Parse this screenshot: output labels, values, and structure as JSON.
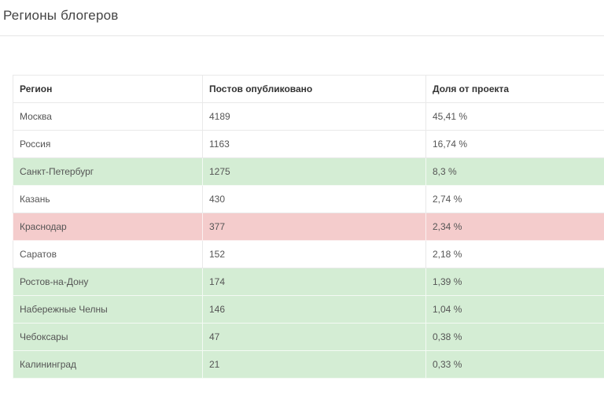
{
  "page": {
    "title": "Регионы блогеров"
  },
  "table": {
    "columns": [
      "Регион",
      "Постов опубликовано",
      "Доля от проекта"
    ],
    "rows": [
      {
        "region": "Москва",
        "posts": "4189",
        "share": "45,41 %",
        "highlight": "none"
      },
      {
        "region": "Россия",
        "posts": "1163",
        "share": "16,74 %",
        "highlight": "none"
      },
      {
        "region": "Санкт-Петербург",
        "posts": "1275",
        "share": "8,3 %",
        "highlight": "green"
      },
      {
        "region": "Казань",
        "posts": "430",
        "share": "2,74 %",
        "highlight": "none"
      },
      {
        "region": "Краснодар",
        "posts": "377",
        "share": "2,34 %",
        "highlight": "red"
      },
      {
        "region": "Саратов",
        "posts": "152",
        "share": "2,18 %",
        "highlight": "none"
      },
      {
        "region": "Ростов-на-Дону",
        "posts": "174",
        "share": "1,39 %",
        "highlight": "green"
      },
      {
        "region": "Набережные Челны",
        "posts": "146",
        "share": "1,04 %",
        "highlight": "green"
      },
      {
        "region": "Чебоксары",
        "posts": "47",
        "share": "0,38 %",
        "highlight": "green"
      },
      {
        "region": "Калининград",
        "posts": "21",
        "share": "0,33 %",
        "highlight": "green"
      }
    ]
  },
  "colors": {
    "green_row": "#d4edd4",
    "red_row": "#f4cccc"
  }
}
